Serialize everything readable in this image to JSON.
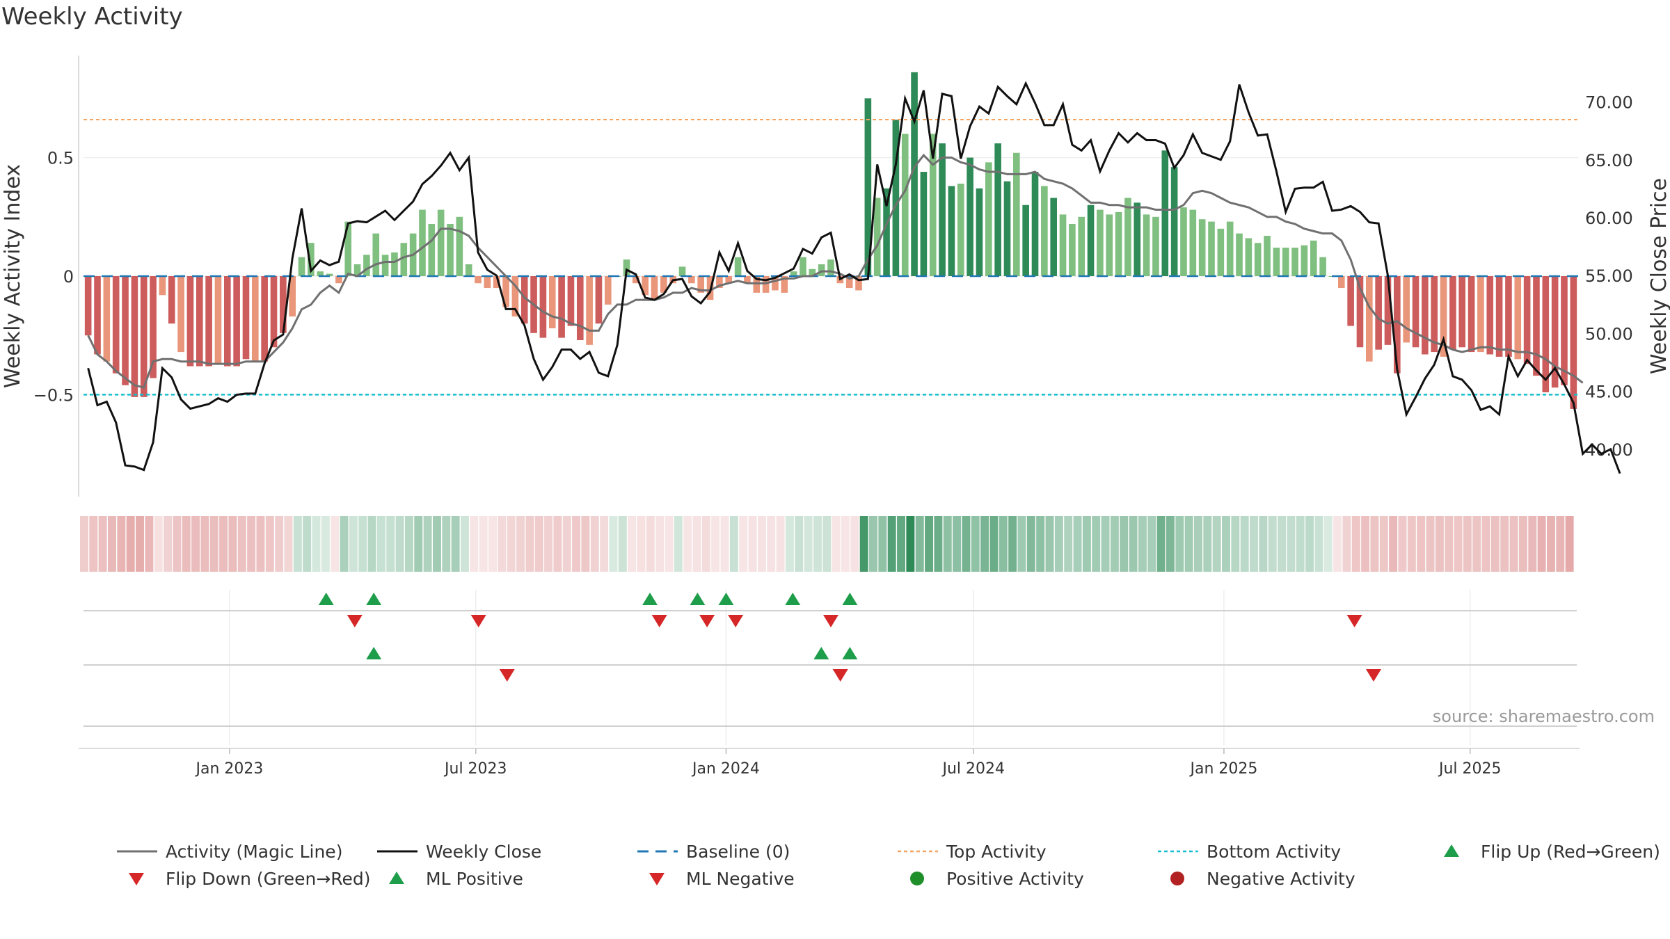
{
  "title": "Weekly Activity",
  "colors": {
    "green_dark": "#2e8b57",
    "green_light": "#7fbf7f",
    "red_dark": "#cd5c5c",
    "red_light": "#e9967a",
    "magic_line": "#707070",
    "close_line": "#111111",
    "baseline": "#1f77b4",
    "top_line": "#f4a460",
    "bottom_line": "#17becf",
    "marker_up": "#1e9e4a",
    "marker_down": "#d62728",
    "negative_dot": "#b22222"
  },
  "chart_data": {
    "type": "bar",
    "title": "Weekly Activity",
    "ylabel": "Weekly Activity Index",
    "y2label": "Weekly Close Price",
    "ylim": [
      -0.93,
      0.93
    ],
    "y2lim": [
      35.9,
      74.0
    ],
    "yticks": [
      0.5,
      0,
      -0.5
    ],
    "ytick_labels": [
      "0.5",
      "0",
      "−0.5"
    ],
    "y2ticks": [
      70,
      65,
      60,
      55,
      50,
      45,
      40
    ],
    "y2tick_labels": [
      "70.00",
      "65.00",
      "60.00",
      "55.00",
      "50.00",
      "45.00",
      "40.00"
    ],
    "top_activity": 0.66,
    "bottom_activity": -0.5,
    "start_date": "2022-09-19",
    "end_date": "2025-09-15",
    "date_ticks": [
      "2023-01-01",
      "2023-07-01",
      "2024-01-01",
      "2024-07-01",
      "2025-01-01",
      "2025-07-01"
    ],
    "date_tick_labels": [
      "Jan 2023",
      "Jul 2023",
      "Jan 2024",
      "Jul 2024",
      "Jan 2025",
      "Jul 2025"
    ],
    "activity": [
      -0.25,
      -0.33,
      -0.36,
      -0.41,
      -0.46,
      -0.51,
      -0.51,
      -0.43,
      -0.08,
      -0.2,
      -0.32,
      -0.38,
      -0.38,
      -0.38,
      -0.37,
      -0.38,
      -0.38,
      -0.35,
      -0.36,
      -0.36,
      -0.3,
      -0.24,
      -0.17,
      0.08,
      0.14,
      0.02,
      0.01,
      -0.03,
      0.23,
      0.05,
      0.09,
      0.18,
      0.09,
      0.1,
      0.14,
      0.18,
      0.28,
      0.22,
      0.28,
      0.22,
      0.25,
      0.05,
      -0.03,
      -0.05,
      -0.05,
      -0.13,
      -0.17,
      -0.2,
      -0.24,
      -0.26,
      -0.22,
      -0.26,
      -0.21,
      -0.27,
      -0.29,
      -0.2,
      -0.12,
      0.0,
      0.07,
      -0.03,
      -0.08,
      -0.1,
      -0.07,
      -0.03,
      0.04,
      -0.03,
      -0.07,
      -0.1,
      -0.05,
      -0.03,
      0.08,
      -0.03,
      -0.07,
      -0.07,
      -0.06,
      -0.07,
      0.02,
      0.08,
      0.03,
      0.05,
      0.07,
      -0.03,
      -0.05,
      -0.06,
      0.75,
      0.33,
      0.37,
      0.66,
      0.6,
      0.86,
      0.44,
      0.6,
      0.56,
      0.38,
      0.39,
      0.5,
      0.37,
      0.48,
      0.56,
      0.4,
      0.52,
      0.3,
      0.44,
      0.38,
      0.33,
      0.26,
      0.22,
      0.25,
      0.3,
      0.28,
      0.26,
      0.27,
      0.33,
      0.31,
      0.26,
      0.25,
      0.53,
      0.46,
      0.29,
      0.28,
      0.24,
      0.23,
      0.2,
      0.23,
      0.18,
      0.16,
      0.14,
      0.17,
      0.12,
      0.12,
      0.12,
      0.13,
      0.15,
      0.08,
      0.0,
      -0.05,
      -0.21,
      -0.3,
      -0.36,
      -0.31,
      -0.29,
      -0.41,
      -0.28,
      -0.3,
      -0.33,
      -0.32,
      -0.34,
      -0.31,
      -0.3,
      -0.32,
      -0.32,
      -0.33,
      -0.34,
      -0.34,
      -0.35,
      -0.37,
      -0.42,
      -0.49,
      -0.47,
      -0.46,
      -0.56
    ],
    "magic_line": [
      -0.25,
      -0.33,
      -0.36,
      -0.4,
      -0.43,
      -0.46,
      -0.47,
      -0.36,
      -0.35,
      -0.35,
      -0.36,
      -0.36,
      -0.36,
      -0.37,
      -0.37,
      -0.37,
      -0.37,
      -0.36,
      -0.36,
      -0.36,
      -0.32,
      -0.28,
      -0.22,
      -0.14,
      -0.12,
      -0.07,
      -0.04,
      -0.07,
      0.01,
      0.0,
      0.03,
      0.05,
      0.06,
      0.06,
      0.08,
      0.09,
      0.12,
      0.15,
      0.2,
      0.2,
      0.19,
      0.17,
      0.12,
      0.08,
      0.04,
      0.0,
      -0.04,
      -0.09,
      -0.12,
      -0.15,
      -0.17,
      -0.18,
      -0.2,
      -0.21,
      -0.23,
      -0.23,
      -0.16,
      -0.12,
      -0.12,
      -0.1,
      -0.1,
      -0.1,
      -0.09,
      -0.07,
      -0.07,
      -0.05,
      -0.06,
      -0.06,
      -0.04,
      -0.03,
      -0.02,
      -0.03,
      -0.03,
      -0.03,
      -0.02,
      -0.01,
      -0.01,
      0.0,
      0.0,
      0.02,
      0.02,
      0.01,
      -0.01,
      0.0,
      0.07,
      0.13,
      0.22,
      0.3,
      0.36,
      0.46,
      0.51,
      0.47,
      0.5,
      0.5,
      0.48,
      0.47,
      0.45,
      0.44,
      0.44,
      0.43,
      0.43,
      0.43,
      0.44,
      0.41,
      0.4,
      0.39,
      0.37,
      0.34,
      0.31,
      0.31,
      0.3,
      0.3,
      0.29,
      0.29,
      0.29,
      0.28,
      0.28,
      0.28,
      0.3,
      0.35,
      0.36,
      0.35,
      0.33,
      0.31,
      0.3,
      0.29,
      0.27,
      0.25,
      0.25,
      0.23,
      0.22,
      0.2,
      0.19,
      0.18,
      0.18,
      0.15,
      0.07,
      -0.05,
      -0.13,
      -0.18,
      -0.2,
      -0.19,
      -0.22,
      -0.24,
      -0.26,
      -0.28,
      -0.29,
      -0.31,
      -0.32,
      -0.31,
      -0.3,
      -0.3,
      -0.31,
      -0.31,
      -0.32,
      -0.32,
      -0.33,
      -0.35,
      -0.38,
      -0.4,
      -0.42,
      -0.45
    ],
    "weekly_close": [
      47.0,
      43.8,
      44.1,
      42.3,
      38.6,
      38.5,
      38.2,
      40.6,
      47.0,
      46.2,
      44.3,
      43.5,
      43.7,
      43.9,
      44.4,
      44.1,
      44.7,
      44.8,
      44.8,
      47.4,
      49.4,
      49.9,
      56.5,
      60.8,
      55.4,
      56.3,
      55.9,
      56.2,
      59.5,
      59.7,
      59.6,
      60.1,
      60.6,
      59.8,
      60.6,
      61.4,
      62.9,
      63.6,
      64.5,
      65.6,
      64.1,
      65.2,
      57.0,
      55.5,
      55.0,
      52.1,
      52.1,
      50.7,
      47.8,
      46.0,
      47.1,
      48.6,
      48.6,
      47.8,
      48.4,
      46.6,
      46.3,
      49.0,
      55.5,
      55.1,
      53.1,
      52.9,
      53.4,
      54.6,
      54.7,
      53.2,
      52.6,
      53.6,
      57.0,
      55.4,
      57.8,
      55.4,
      54.7,
      54.6,
      54.8,
      55.2,
      55.6,
      57.3,
      56.9,
      58.3,
      58.7,
      54.7,
      55.1,
      54.6,
      54.7,
      64.6,
      61.0,
      64.6,
      70.3,
      68.3,
      71.0,
      65.1,
      70.7,
      70.5,
      65.1,
      67.9,
      69.6,
      69.0,
      71.3,
      70.5,
      69.8,
      71.6,
      69.9,
      68.0,
      68.0,
      69.8,
      66.3,
      65.8,
      66.7,
      64.0,
      65.8,
      67.3,
      66.5,
      67.3,
      66.7,
      66.7,
      66.4,
      64.3,
      65.4,
      67.2,
      65.6,
      65.3,
      65.0,
      66.6,
      71.5,
      69.1,
      67.1,
      67.2,
      64.0,
      60.5,
      62.5,
      62.6,
      62.6,
      63.1,
      60.6,
      60.7,
      61.0,
      60.5,
      59.6,
      59.5,
      55.0,
      46.9,
      43.0,
      44.5,
      46.1,
      47.3,
      49.5,
      46.3,
      46.0,
      45.1,
      43.4,
      43.7,
      43.0,
      48.0,
      46.3,
      47.7,
      46.8,
      46.0,
      47.0,
      45.6,
      44.0,
      39.6,
      40.4,
      39.6,
      40.0,
      37.9
    ],
    "flip_up": [
      "2023-03-13",
      "2023-04-17",
      "2023-11-06",
      "2023-12-11",
      "2024-01-01",
      "2024-02-19",
      "2024-04-01"
    ],
    "flip_down": [
      "2023-04-03",
      "2023-07-03",
      "2023-11-13",
      "2023-12-18",
      "2024-01-08",
      "2024-03-18",
      "2025-04-07"
    ],
    "ml_positive": [
      "2023-04-17",
      "2024-03-11",
      "2024-04-01"
    ],
    "ml_negative": [
      "2023-07-24",
      "2024-03-25",
      "2025-04-21"
    ],
    "legend": [
      {
        "label": "Activity (Magic Line)",
        "kind": "line-gray"
      },
      {
        "label": "Weekly Close",
        "kind": "line-black"
      },
      {
        "label": "Baseline (0)",
        "kind": "dash-blue"
      },
      {
        "label": "Top Activity",
        "kind": "dot-orange"
      },
      {
        "label": "Bottom Activity",
        "kind": "dot-cyan"
      },
      {
        "label": "Flip Up (Red→Green)",
        "kind": "tri-up"
      },
      {
        "label": "Flip Down (Green→Red)",
        "kind": "tri-down"
      },
      {
        "label": "ML Positive",
        "kind": "tri-up"
      },
      {
        "label": "ML Negative",
        "kind": "tri-down"
      },
      {
        "label": "Positive Activity",
        "kind": "dot-green"
      },
      {
        "label": "Negative Activity",
        "kind": "dot-red"
      }
    ]
  },
  "source": "source: sharemaestro.com"
}
